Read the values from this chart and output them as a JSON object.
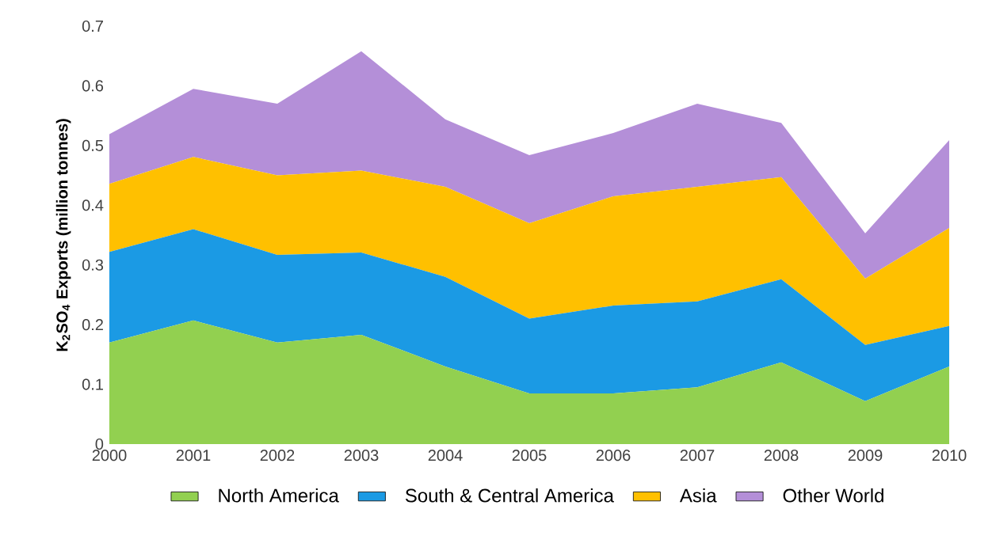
{
  "chart_data": {
    "type": "area",
    "stacked": true,
    "ylabel": "K$_{2}$SO$_{4}$ Exports (million tonnes)",
    "x": [
      2000,
      2001,
      2002,
      2003,
      2004,
      2005,
      2006,
      2007,
      2008,
      2009,
      2010
    ],
    "xlim": [
      2000,
      2010
    ],
    "xticks": [
      2000,
      2001,
      2002,
      2003,
      2004,
      2005,
      2006,
      2007,
      2008,
      2009,
      2010
    ],
    "ylim": [
      0,
      0.7
    ],
    "yticks": [
      0,
      0.1,
      0.2,
      0.3,
      0.4,
      0.5,
      0.6,
      0.7
    ],
    "grid": false,
    "legend": "bottom",
    "series": [
      {
        "name": "North America",
        "color": "#92d050",
        "values": [
          0.17,
          0.207,
          0.17,
          0.183,
          0.13,
          0.085,
          0.085,
          0.095,
          0.137,
          0.072,
          0.13
        ]
      },
      {
        "name": "South & Central America",
        "color": "#1b9ae4",
        "values": [
          0.152,
          0.153,
          0.147,
          0.138,
          0.15,
          0.125,
          0.147,
          0.144,
          0.139,
          0.094,
          0.068
        ]
      },
      {
        "name": "Asia",
        "color": "#ffc000",
        "values": [
          0.114,
          0.121,
          0.133,
          0.137,
          0.151,
          0.16,
          0.183,
          0.192,
          0.171,
          0.111,
          0.164
        ]
      },
      {
        "name": "Other World",
        "color": "#b48fd8",
        "values": [
          0.083,
          0.114,
          0.12,
          0.2,
          0.113,
          0.114,
          0.106,
          0.139,
          0.091,
          0.076,
          0.147
        ]
      }
    ]
  }
}
